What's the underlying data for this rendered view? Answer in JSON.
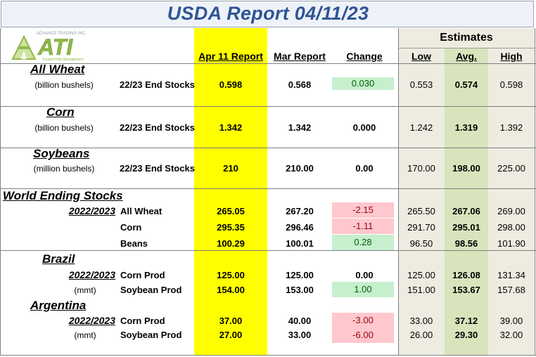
{
  "title": "USDA Report 04/11/23",
  "logo": {
    "top_text": "ADVANCE TRADING INC",
    "brand": "ATI",
    "tagline": "Trusted Risk Management"
  },
  "headers": {
    "estimates": "Estimates",
    "apr": "Apr 11 Report",
    "mar": "Mar Report",
    "change": "Change",
    "low": "Low",
    "avg": "Avg.",
    "high": "High"
  },
  "sections": {
    "wheat": {
      "name": "All Wheat",
      "unit": "(billion bushels)",
      "label": "22/23 End Stocks",
      "apr": "0.598",
      "mar": "0.568",
      "change": "0.030",
      "low": "0.553",
      "avg": "0.574",
      "high": "0.598"
    },
    "corn": {
      "name": "Corn",
      "unit": "(billion bushels)",
      "label": "22/23 End Stocks",
      "apr": "1.342",
      "mar": "1.342",
      "change": "0.000",
      "low": "1.242",
      "avg": "1.319",
      "high": "1.392"
    },
    "soy": {
      "name": "Soybeans",
      "unit": "(million bushels)",
      "label": "22/23 End Stocks",
      "apr": "210",
      "mar": "210.00",
      "change": "0.00",
      "low": "170.00",
      "avg": "198.00",
      "high": "225.00"
    },
    "world": {
      "name": "World Ending Stocks",
      "year": "2022/2023",
      "rows": [
        {
          "label": "All Wheat",
          "apr": "265.05",
          "mar": "267.20",
          "change": "-2.15",
          "low": "265.50",
          "avg": "267.06",
          "high": "269.00"
        },
        {
          "label": "Corn",
          "apr": "295.35",
          "mar": "296.46",
          "change": "-1.11",
          "low": "291.70",
          "avg": "295.01",
          "high": "298.00"
        },
        {
          "label": "Beans",
          "apr": "100.29",
          "mar": "100.01",
          "change": "0.28",
          "low": "96.50",
          "avg": "98.56",
          "high": "101.90"
        }
      ]
    },
    "brazil": {
      "name": "Brazil",
      "year": "2022/2023",
      "unit": "(mmt)",
      "rows": [
        {
          "label": "Corn Prod",
          "apr": "125.00",
          "mar": "125.00",
          "change": "0.00",
          "low": "125.00",
          "avg": "126.08",
          "high": "131.34"
        },
        {
          "label": "Soybean Prod",
          "apr": "154.00",
          "mar": "153.00",
          "change": "1.00",
          "low": "151.00",
          "avg": "153.67",
          "high": "157.68"
        }
      ]
    },
    "argentina": {
      "name": "Argentina",
      "year": "2022/2023",
      "unit": "(mmt)",
      "rows": [
        {
          "label": "Corn Prod",
          "apr": "37.00",
          "mar": "40.00",
          "change": "-3.00",
          "low": "33.00",
          "avg": "37.12",
          "high": "39.00"
        },
        {
          "label": "Soybean Prod",
          "apr": "27.00",
          "mar": "33.00",
          "change": "-6.00",
          "low": "26.00",
          "avg": "29.30",
          "high": "32.00"
        }
      ]
    }
  },
  "colors": {
    "title": "#2f5595",
    "apr_column": "#ffff00",
    "estimates_bg": "#eeece1",
    "avg_column": "#d8e4bc",
    "positive_change": "#c6efce",
    "negative_change": "#ffc7ce"
  }
}
